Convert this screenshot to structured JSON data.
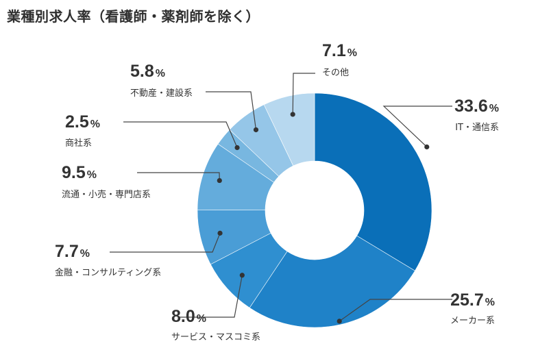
{
  "page": {
    "title": "業種別求人率（看護師・薬剤師を除く）"
  },
  "chart_data": {
    "type": "pie",
    "variant": "donut",
    "title": "業種別求人率（看護師・薬剤師を除く）",
    "unit": "%",
    "slices": [
      {
        "label": "IT・通信系",
        "value": 33.6,
        "value_label": "33.6",
        "color": "#0a6fb8"
      },
      {
        "label": "メーカー系",
        "value": 25.7,
        "value_label": "25.7",
        "color": "#1f82c8"
      },
      {
        "label": "サービス・マスコミ系",
        "value": 8.0,
        "value_label": "8.0",
        "color": "#2f8fd0"
      },
      {
        "label": "金融・コンサルティング系",
        "value": 7.7,
        "value_label": "7.7",
        "color": "#4a9dd6"
      },
      {
        "label": "流通・小売・専門店系",
        "value": 9.5,
        "value_label": "9.5",
        "color": "#64acdc"
      },
      {
        "label": "商社系",
        "value": 2.5,
        "value_label": "2.5",
        "color": "#78b7e0"
      },
      {
        "label": "不動産・建設系",
        "value": 5.8,
        "value_label": "5.8",
        "color": "#95c6e8"
      },
      {
        "label": "その他",
        "value": 7.1,
        "value_label": "7.1",
        "color": "#b7d8ef"
      }
    ]
  }
}
